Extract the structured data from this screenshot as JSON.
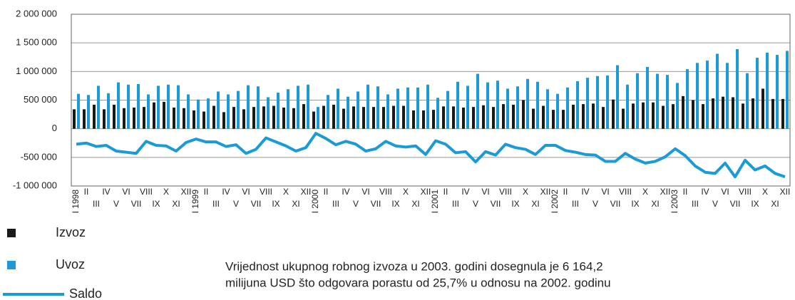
{
  "chart_data": {
    "type": "bar_line",
    "categories": [
      "I 1998",
      "II",
      "III",
      "IV",
      "V",
      "VI",
      "VII",
      "VIII",
      "IX",
      "X",
      "XI",
      "XII",
      "I 1999",
      "II",
      "III",
      "IV",
      "V",
      "VI",
      "VII",
      "VIII",
      "IX",
      "X",
      "XI",
      "XII",
      "I 2000",
      "II",
      "III",
      "IV",
      "V",
      "VI",
      "VII",
      "VIII",
      "IX",
      "X",
      "XI",
      "XII",
      "I 2001",
      "II",
      "III",
      "IV",
      "V",
      "VI",
      "VII",
      "VIII",
      "IX",
      "X",
      "XI",
      "XII",
      "I 2002",
      "II",
      "III",
      "IV",
      "V",
      "VI",
      "VII",
      "VIII",
      "IX",
      "X",
      "XI",
      "XII",
      "I 2003",
      "II",
      "III",
      "IV",
      "V",
      "VI",
      "VII",
      "VIII",
      "IX",
      "X",
      "XI",
      "XII"
    ],
    "series": [
      {
        "name": "Izvoz",
        "type": "bar",
        "color": "#1a1a1a",
        "values": [
          340000,
          340000,
          420000,
          340000,
          420000,
          360000,
          370000,
          380000,
          460000,
          470000,
          370000,
          360000,
          320000,
          300000,
          400000,
          290000,
          380000,
          340000,
          380000,
          390000,
          400000,
          370000,
          360000,
          430000,
          300000,
          400000,
          420000,
          350000,
          390000,
          380000,
          380000,
          380000,
          400000,
          400000,
          320000,
          320000,
          330000,
          390000,
          390000,
          370000,
          380000,
          410000,
          380000,
          430000,
          420000,
          500000,
          350000,
          400000,
          330000,
          330000,
          420000,
          430000,
          440000,
          380000,
          510000,
          350000,
          440000,
          460000,
          460000,
          400000,
          430000,
          570000,
          500000,
          430000,
          530000,
          560000,
          550000,
          440000,
          530000,
          700000,
          520000,
          520000
        ]
      },
      {
        "name": "Uvoz",
        "type": "bar",
        "color": "#1a9ad6",
        "values": [
          610000,
          590000,
          750000,
          620000,
          810000,
          770000,
          780000,
          600000,
          750000,
          770000,
          760000,
          600000,
          510000,
          530000,
          650000,
          600000,
          660000,
          760000,
          740000,
          550000,
          630000,
          690000,
          750000,
          770000,
          380000,
          590000,
          700000,
          560000,
          650000,
          770000,
          740000,
          600000,
          700000,
          720000,
          720000,
          770000,
          540000,
          660000,
          820000,
          750000,
          960000,
          810000,
          840000,
          700000,
          740000,
          870000,
          820000,
          690000,
          610000,
          720000,
          830000,
          890000,
          920000,
          930000,
          1110000,
          770000,
          970000,
          1080000,
          960000,
          940000,
          800000,
          1040000,
          1150000,
          1190000,
          1310000,
          1150000,
          1390000,
          970000,
          1240000,
          1330000,
          1290000,
          1360000
        ]
      },
      {
        "name": "Saldo",
        "type": "line",
        "color": "#1a9ad6",
        "values": [
          -270000,
          -250000,
          -310000,
          -290000,
          -390000,
          -410000,
          -430000,
          -220000,
          -290000,
          -300000,
          -390000,
          -240000,
          -180000,
          -230000,
          -230000,
          -310000,
          -280000,
          -430000,
          -360000,
          -160000,
          -230000,
          -300000,
          -390000,
          -330000,
          -80000,
          -170000,
          -280000,
          -220000,
          -270000,
          -390000,
          -350000,
          -220000,
          -300000,
          -320000,
          -300000,
          -450000,
          -210000,
          -270000,
          -420000,
          -400000,
          -580000,
          -400000,
          -460000,
          -270000,
          -330000,
          -360000,
          -450000,
          -290000,
          -290000,
          -380000,
          -410000,
          -450000,
          -460000,
          -570000,
          -570000,
          -430000,
          -530000,
          -600000,
          -570000,
          -490000,
          -350000,
          -470000,
          -650000,
          -760000,
          -780000,
          -600000,
          -840000,
          -550000,
          -720000,
          -650000,
          -780000,
          -840000
        ]
      }
    ],
    "ylim": [
      -1000000,
      2000000
    ],
    "yticks": [
      {
        "value": -1000000,
        "label": "-1 000 000"
      },
      {
        "value": -500000,
        "label": "-500 000"
      },
      0,
      {
        "value": 500000,
        "label": "500 000"
      },
      {
        "value": 1000000,
        "label": "1 000 000"
      },
      {
        "value": 1500000,
        "label": "1 500 000"
      },
      {
        "value": 2000000,
        "label": "2 000 000"
      }
    ],
    "grid": true,
    "annotations": [
      "Vrijednost ukupnog robnog izvoza u 2003. godini dosegnula je 6 164,2",
      "milijuna USD što odgovara porastu od 25,7% u odnosu na 2002. godinu"
    ]
  }
}
